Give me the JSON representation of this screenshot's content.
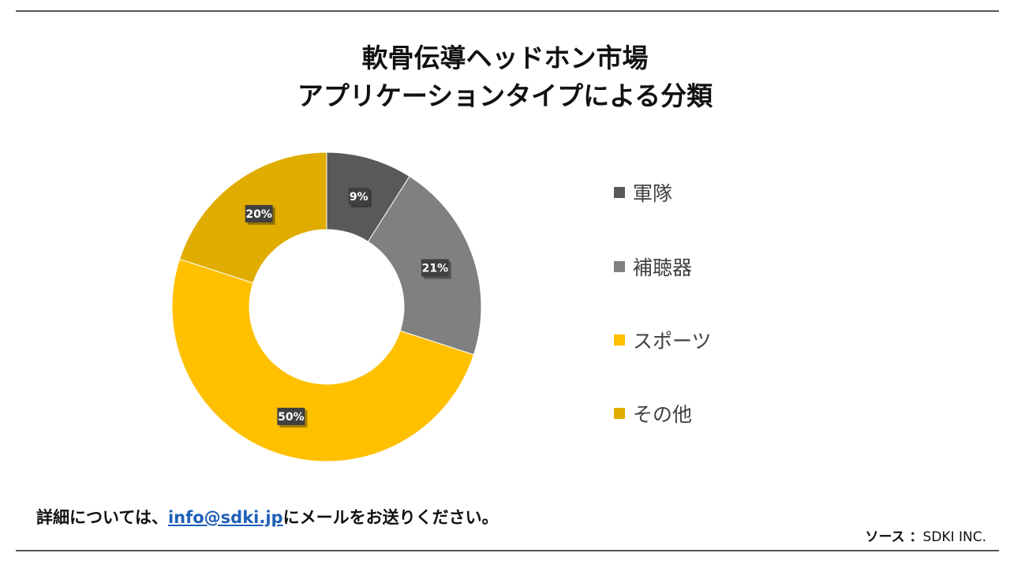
{
  "title_lines": [
    "軟骨伝導ヘッドホン市場",
    "アプリケーションタイプによる分類"
  ],
  "chart_data": {
    "type": "donut",
    "title": "軟骨伝導ヘッドホン市場 アプリケーションタイプによる分類",
    "categories": [
      "軍隊",
      "補聴器",
      "スポーツ",
      "その他"
    ],
    "values": [
      9,
      21,
      50,
      20
    ],
    "data_labels": [
      "9%",
      "21%",
      "50%",
      "20%"
    ],
    "colors": [
      "#595959",
      "#808080",
      "#FFC000",
      "#E0AC00"
    ],
    "legend_position": "right"
  },
  "footer": {
    "text_before": "詳細については、",
    "email": "info@sdki.jp",
    "text_after": "にメールをお送りください。"
  },
  "source": {
    "label": "ソース ：",
    "value": "SDKI INC."
  }
}
